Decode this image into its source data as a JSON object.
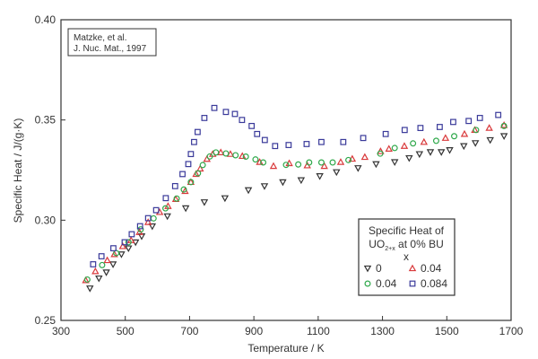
{
  "chart_data": {
    "type": "scatter",
    "xlabel": "Temperature / K",
    "ylabel": "Specific Heat / J/(g·K)",
    "xlim": [
      300,
      1700
    ],
    "ylim": [
      0.25,
      0.4
    ],
    "xticks": [
      300,
      500,
      700,
      900,
      1100,
      1300,
      1500,
      1700
    ],
    "xtick_labels": [
      "300",
      "500",
      "700",
      "900",
      "1100",
      "1300",
      "1500",
      "1700"
    ],
    "yticks": [
      0.25,
      0.3,
      0.35,
      0.4
    ],
    "ytick_labels": [
      "0.25",
      "0.30",
      "0.35",
      "0.40"
    ],
    "grid": false,
    "annotation": {
      "line1": "Matzke, et al.",
      "line2": "J. Nuc. Mat., 1997"
    },
    "legend": {
      "placement": "bottom-right",
      "title_line1": "Specific Heat of",
      "title_uo": "UO",
      "title_sub": "2+x",
      "title_rest": " at 0% BU",
      "title_line3": "x"
    },
    "series": [
      {
        "name": "0",
        "marker": "triangle-down",
        "color": "#333333",
        "x": [
          390,
          418,
          441,
          462,
          488,
          510,
          532,
          551,
          584,
          631,
          688,
          746,
          810,
          883,
          933,
          990,
          1047,
          1105,
          1157,
          1224,
          1280,
          1338,
          1383,
          1415,
          1449,
          1483,
          1509,
          1553,
          1589,
          1635,
          1678
        ],
        "y": [
          0.266,
          0.271,
          0.274,
          0.278,
          0.283,
          0.286,
          0.289,
          0.292,
          0.297,
          0.302,
          0.306,
          0.309,
          0.311,
          0.315,
          0.317,
          0.319,
          0.32,
          0.322,
          0.324,
          0.326,
          0.328,
          0.329,
          0.331,
          0.333,
          0.334,
          0.334,
          0.335,
          0.337,
          0.3385,
          0.34,
          0.342
        ]
      },
      {
        "name": "0.04",
        "marker": "triangle-up",
        "color": "#d9393b",
        "x": [
          377,
          407,
          444,
          466,
          492,
          518,
          544,
          571,
          607,
          633,
          657,
          686,
          704,
          720,
          733,
          754,
          772,
          797,
          827,
          864,
          918,
          961,
          1010,
          1066,
          1119,
          1170,
          1206,
          1245,
          1294,
          1320,
          1368,
          1429,
          1496,
          1555,
          1587,
          1632,
          1678
        ],
        "y": [
          0.27,
          0.2745,
          0.28,
          0.283,
          0.287,
          0.29,
          0.294,
          0.299,
          0.304,
          0.307,
          0.3105,
          0.3145,
          0.319,
          0.323,
          0.3257,
          0.3305,
          0.333,
          0.3338,
          0.333,
          0.332,
          0.329,
          0.327,
          0.3284,
          0.3273,
          0.327,
          0.329,
          0.3306,
          0.3315,
          0.3344,
          0.3356,
          0.337,
          0.339,
          0.341,
          0.343,
          0.345,
          0.346,
          0.3474
        ]
      },
      {
        "name": "0.04",
        "marker": "circle",
        "color": "#2ea84a",
        "x": [
          382,
          428,
          472,
          510,
          548,
          588,
          625,
          660,
          682,
          704,
          726,
          741,
          763,
          782,
          813,
          843,
          875,
          905,
          929,
          1000,
          1038,
          1072,
          1110,
          1145,
          1194,
          1293,
          1338,
          1395,
          1467,
          1523,
          1591,
          1678
        ],
        "y": [
          0.2704,
          0.2776,
          0.2836,
          0.289,
          0.2954,
          0.3009,
          0.3059,
          0.3108,
          0.3153,
          0.319,
          0.3234,
          0.3275,
          0.3318,
          0.3338,
          0.3333,
          0.3324,
          0.3317,
          0.3303,
          0.3288,
          0.3276,
          0.3278,
          0.3288,
          0.3288,
          0.3288,
          0.33,
          0.3332,
          0.336,
          0.3383,
          0.3396,
          0.3419,
          0.345,
          0.347
        ]
      },
      {
        "name": "0.084",
        "marker": "square",
        "color": "#3a3a9a",
        "x": [
          400,
          426,
          463,
          498,
          520,
          546,
          571,
          596,
          626,
          655,
          678,
          696,
          704,
          714,
          725,
          746,
          777,
          813,
          841,
          863,
          893,
          910,
          934,
          966,
          1008,
          1064,
          1110,
          1178,
          1240,
          1310,
          1369,
          1418,
          1478,
          1520,
          1568,
          1603,
          1660
        ],
        "y": [
          0.278,
          0.282,
          0.286,
          0.289,
          0.293,
          0.297,
          0.301,
          0.305,
          0.311,
          0.317,
          0.323,
          0.328,
          0.333,
          0.339,
          0.344,
          0.351,
          0.356,
          0.354,
          0.353,
          0.35,
          0.347,
          0.343,
          0.34,
          0.337,
          0.3375,
          0.338,
          0.339,
          0.339,
          0.341,
          0.343,
          0.345,
          0.346,
          0.3465,
          0.349,
          0.3495,
          0.351,
          0.3525
        ]
      }
    ]
  }
}
